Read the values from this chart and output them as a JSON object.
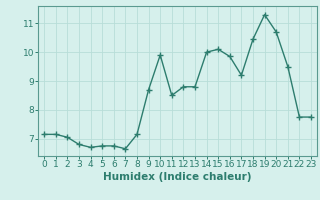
{
  "x": [
    0,
    1,
    2,
    3,
    4,
    5,
    6,
    7,
    8,
    9,
    10,
    11,
    12,
    13,
    14,
    15,
    16,
    17,
    18,
    19,
    20,
    21,
    22,
    23
  ],
  "y": [
    7.15,
    7.15,
    7.05,
    6.8,
    6.7,
    6.75,
    6.75,
    6.65,
    7.15,
    8.7,
    9.9,
    8.5,
    8.8,
    8.8,
    10.0,
    10.1,
    9.85,
    9.2,
    10.45,
    11.3,
    10.7,
    9.5,
    7.75,
    7.75
  ],
  "line_color": "#2d7d6e",
  "marker": "+",
  "marker_size": 4,
  "marker_lw": 1.0,
  "linewidth": 1.0,
  "linestyle": "-",
  "xlabel": "Humidex (Indice chaleur)",
  "xlim": [
    -0.5,
    23.5
  ],
  "ylim": [
    6.4,
    11.6
  ],
  "yticks": [
    7,
    8,
    9,
    10,
    11
  ],
  "xticks": [
    0,
    1,
    2,
    3,
    4,
    5,
    6,
    7,
    8,
    9,
    10,
    11,
    12,
    13,
    14,
    15,
    16,
    17,
    18,
    19,
    20,
    21,
    22,
    23
  ],
  "background_color": "#d6f0ec",
  "grid_color": "#b8ddd8",
  "line_dark": "#2d7d6e",
  "xlabel_fontsize": 7.5,
  "tick_fontsize": 6.5,
  "spine_color": "#5a9a90"
}
